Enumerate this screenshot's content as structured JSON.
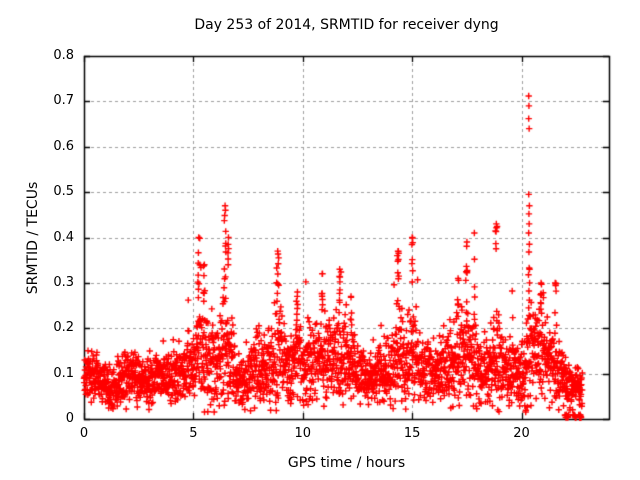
{
  "title": "Day 253 of 2014, SRMTID for receiver dyng",
  "chart_data": {
    "type": "scatter",
    "title": "Day 253 of 2014, SRMTID for receiver dyng",
    "xlabel": "GPS time / hours",
    "ylabel": "SRMTID / TECUs",
    "xlim": [
      0,
      24
    ],
    "ylim": [
      0,
      0.8
    ],
    "xticks": [
      0,
      5,
      10,
      15,
      20
    ],
    "yticks": [
      0,
      0.1,
      0.2,
      0.3,
      0.4,
      0.5,
      0.6,
      0.7,
      0.8
    ],
    "xtick_labels": [
      "0",
      "5",
      "10",
      "15",
      "20"
    ],
    "ytick_labels": [
      "0",
      "0.1",
      "0.2",
      "0.3",
      "0.4",
      "0.5",
      "0.6",
      "0.7",
      "0.8"
    ],
    "grid": true,
    "legend": "none",
    "marker": "plus",
    "marker_color": "#ff0000",
    "grid_color": "#9e9e9e",
    "border_color": "#000000",
    "background_color": "#ffffff",
    "x_data_range": [
      0,
      22.78
    ],
    "approx_point_count": 2730,
    "baseline_profile": [
      [
        0.0,
        0.085,
        0.03
      ],
      [
        0.4,
        0.1,
        0.032
      ],
      [
        0.9,
        0.08,
        0.028
      ],
      [
        1.35,
        0.06,
        0.025
      ],
      [
        1.8,
        0.09,
        0.03
      ],
      [
        2.2,
        0.1,
        0.032
      ],
      [
        2.7,
        0.075,
        0.028
      ],
      [
        3.3,
        0.1,
        0.032
      ],
      [
        3.9,
        0.085,
        0.03
      ],
      [
        4.4,
        0.1,
        0.032
      ],
      [
        4.9,
        0.115,
        0.04
      ],
      [
        5.3,
        0.155,
        0.07
      ],
      [
        5.65,
        0.13,
        0.055
      ],
      [
        6.0,
        0.115,
        0.045
      ],
      [
        6.45,
        0.16,
        0.08
      ],
      [
        6.9,
        0.1,
        0.04
      ],
      [
        7.35,
        0.08,
        0.032
      ],
      [
        7.9,
        0.115,
        0.048
      ],
      [
        8.35,
        0.105,
        0.04
      ],
      [
        8.85,
        0.15,
        0.07
      ],
      [
        9.3,
        0.11,
        0.04
      ],
      [
        9.75,
        0.125,
        0.05
      ],
      [
        10.15,
        0.115,
        0.042
      ],
      [
        10.55,
        0.13,
        0.05
      ],
      [
        10.95,
        0.145,
        0.06
      ],
      [
        11.35,
        0.13,
        0.05
      ],
      [
        11.75,
        0.15,
        0.065
      ],
      [
        12.15,
        0.125,
        0.048
      ],
      [
        12.6,
        0.1,
        0.038
      ],
      [
        13.1,
        0.095,
        0.034
      ],
      [
        13.6,
        0.105,
        0.04
      ],
      [
        14.0,
        0.115,
        0.045
      ],
      [
        14.35,
        0.145,
        0.065
      ],
      [
        14.7,
        0.12,
        0.05
      ],
      [
        15.0,
        0.14,
        0.06
      ],
      [
        15.45,
        0.105,
        0.04
      ],
      [
        15.9,
        0.095,
        0.035
      ],
      [
        16.35,
        0.105,
        0.042
      ],
      [
        16.8,
        0.12,
        0.05
      ],
      [
        17.15,
        0.135,
        0.058
      ],
      [
        17.5,
        0.14,
        0.062
      ],
      [
        17.9,
        0.115,
        0.048
      ],
      [
        18.35,
        0.1,
        0.04
      ],
      [
        18.8,
        0.135,
        0.06
      ],
      [
        19.25,
        0.115,
        0.042
      ],
      [
        19.7,
        0.105,
        0.04
      ],
      [
        20.1,
        0.11,
        0.045
      ],
      [
        20.4,
        0.15,
        0.07
      ],
      [
        20.9,
        0.135,
        0.058
      ],
      [
        21.5,
        0.115,
        0.05
      ],
      [
        21.95,
        0.09,
        0.035
      ],
      [
        22.3,
        0.075,
        0.025
      ],
      [
        22.78,
        0.07,
        0.022
      ]
    ],
    "spikes": [
      [
        5.25,
        0.4,
        9,
        0.1
      ],
      [
        5.5,
        0.34,
        7,
        0.08
      ],
      [
        6.45,
        0.47,
        11,
        0.07
      ],
      [
        6.6,
        0.4,
        5,
        0.05
      ],
      [
        8.85,
        0.37,
        9,
        0.1
      ],
      [
        9.75,
        0.28,
        5,
        0.08
      ],
      [
        10.9,
        0.32,
        7,
        0.08
      ],
      [
        11.7,
        0.33,
        7,
        0.1
      ],
      [
        12.2,
        0.27,
        4,
        0.07
      ],
      [
        14.35,
        0.37,
        8,
        0.07
      ],
      [
        15.0,
        0.4,
        7,
        0.07
      ],
      [
        17.1,
        0.31,
        6,
        0.07
      ],
      [
        17.5,
        0.39,
        7,
        0.06
      ],
      [
        17.85,
        0.41,
        4,
        0.05
      ],
      [
        18.85,
        0.43,
        7,
        0.08
      ],
      [
        20.9,
        0.3,
        6,
        0.08
      ],
      [
        21.55,
        0.3,
        5,
        0.08
      ]
    ],
    "outliers": [
      [
        20.33,
        0.712
      ],
      [
        20.34,
        0.69
      ],
      [
        20.33,
        0.662
      ],
      [
        20.35,
        0.64
      ],
      [
        20.33,
        0.495
      ],
      [
        20.36,
        0.47
      ],
      [
        20.34,
        0.452
      ],
      [
        20.35,
        0.43
      ],
      [
        20.33,
        0.41
      ],
      [
        20.36,
        0.385
      ],
      [
        20.34,
        0.368
      ],
      [
        20.35,
        0.333
      ],
      [
        20.32,
        0.318
      ],
      [
        20.37,
        0.3
      ],
      [
        20.34,
        0.282
      ],
      [
        20.36,
        0.262
      ],
      [
        20.33,
        0.245
      ],
      [
        20.35,
        0.228
      ]
    ],
    "zero_clusters": [
      [
        21.98,
        22.16,
        9
      ],
      [
        22.34,
        22.5,
        10
      ],
      [
        22.56,
        22.74,
        10
      ]
    ]
  }
}
